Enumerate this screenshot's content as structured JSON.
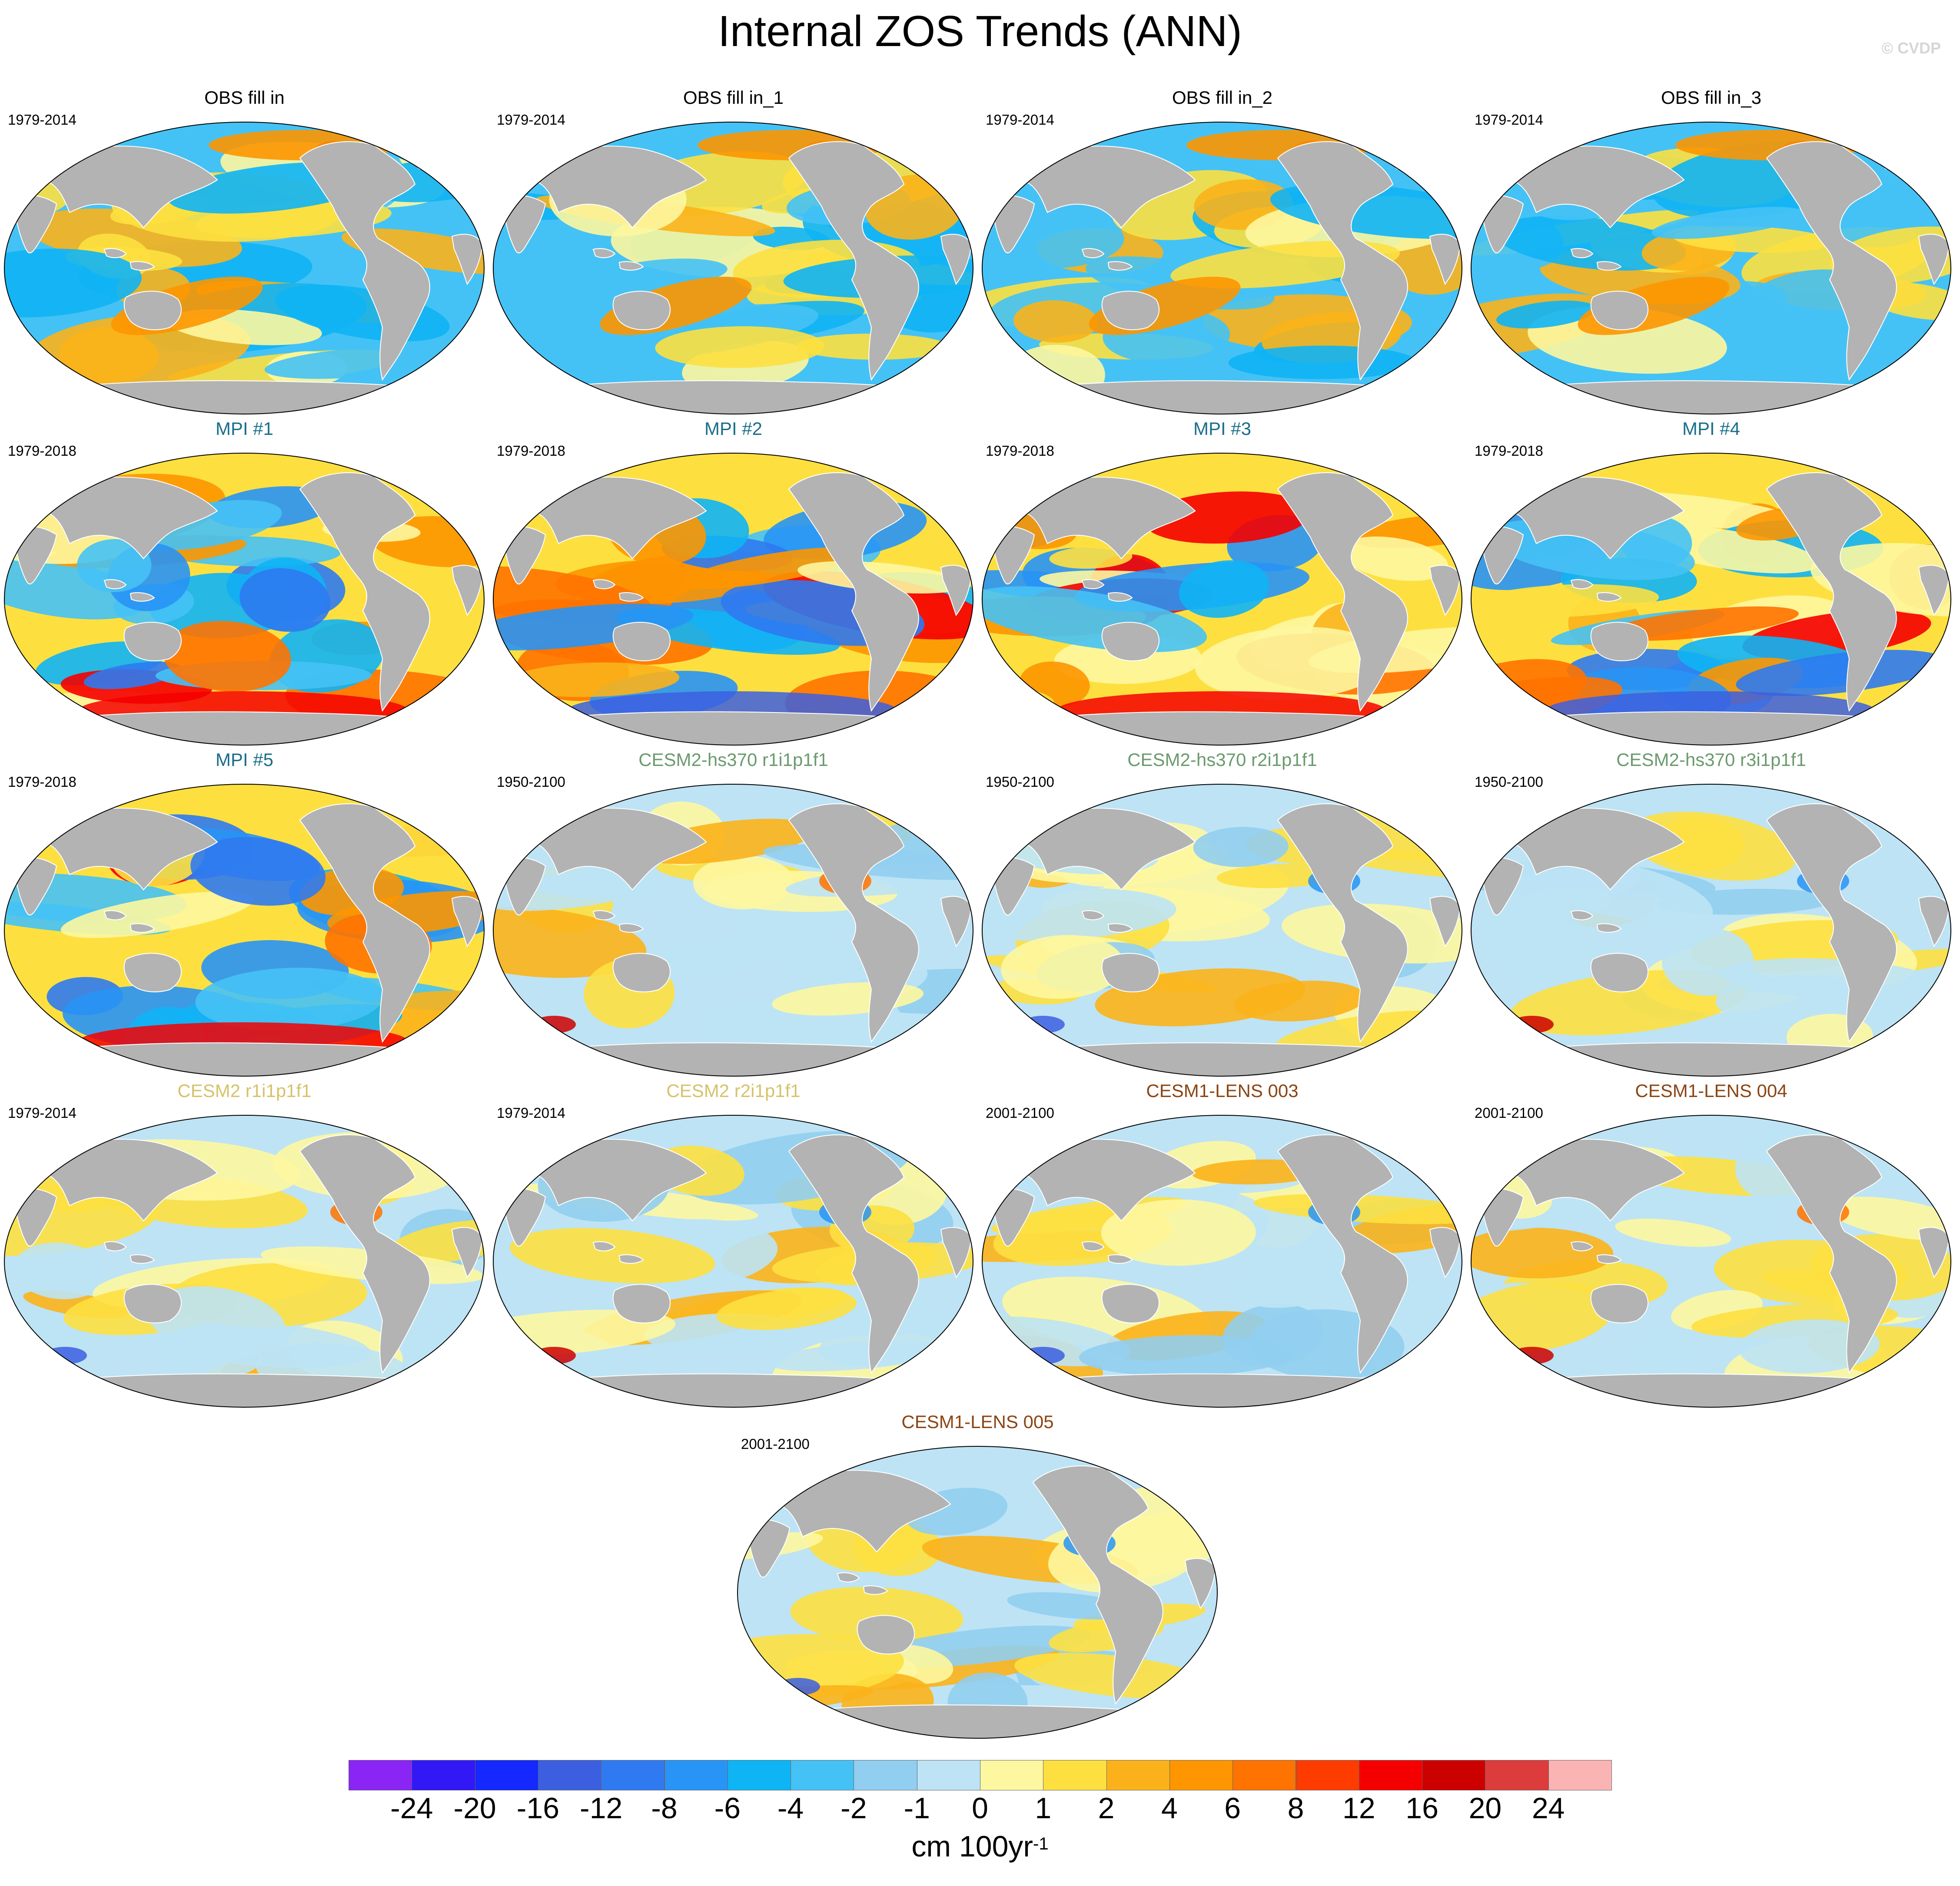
{
  "title": "Internal ZOS Trends (ANN)",
  "watermark": "© CVDP",
  "panels": [
    {
      "title": "OBS fill in",
      "period": "1979-2014",
      "title_color": "#000000"
    },
    {
      "title": "OBS fill in_1",
      "period": "1979-2014",
      "title_color": "#000000"
    },
    {
      "title": "OBS fill in_2",
      "period": "1979-2014",
      "title_color": "#000000"
    },
    {
      "title": "OBS fill in_3",
      "period": "1979-2014",
      "title_color": "#000000"
    },
    {
      "title": "MPI #1",
      "period": "1979-2018",
      "title_color": "#1a6e8a"
    },
    {
      "title": "MPI #2",
      "period": "1979-2018",
      "title_color": "#1a6e8a"
    },
    {
      "title": "MPI #3",
      "period": "1979-2018",
      "title_color": "#1a6e8a"
    },
    {
      "title": "MPI #4",
      "period": "1979-2018",
      "title_color": "#1a6e8a"
    },
    {
      "title": "MPI #5",
      "period": "1979-2018",
      "title_color": "#1a6e8a"
    },
    {
      "title": "CESM2-hs370 r1i1p1f1",
      "period": "1950-2100",
      "title_color": "#6b9a6e"
    },
    {
      "title": "CESM2-hs370 r2i1p1f1",
      "period": "1950-2100",
      "title_color": "#6b9a6e"
    },
    {
      "title": "CESM2-hs370 r3i1p1f1",
      "period": "1950-2100",
      "title_color": "#6b9a6e"
    },
    {
      "title": "CESM2 r1i1p1f1",
      "period": "1979-2014",
      "title_color": "#d6c26a"
    },
    {
      "title": "CESM2 r2i1p1f1",
      "period": "1979-2014",
      "title_color": "#d6c26a"
    },
    {
      "title": "CESM1-LENS 003",
      "period": "2001-2100",
      "title_color": "#8b4513"
    },
    {
      "title": "CESM1-LENS 004",
      "period": "2001-2100",
      "title_color": "#8b4513"
    },
    {
      "title": "CESM1-LENS 005",
      "period": "2001-2100",
      "title_color": "#8b4513"
    }
  ],
  "colorbar": {
    "colors": [
      "#8a25f5",
      "#3218f5",
      "#1428ff",
      "#3c5fe0",
      "#2f7af0",
      "#2894f5",
      "#0fb4f5",
      "#45c2f5",
      "#91cef0",
      "#bde3f5",
      "#fdf7a0",
      "#fde040",
      "#fbb21a",
      "#fd9600",
      "#ff7300",
      "#ff3c00",
      "#f50000",
      "#cd0000",
      "#dc3c3c",
      "#fab4b4"
    ],
    "labels": [
      "-24",
      "-20",
      "-16",
      "-12",
      "-8",
      "-6",
      "-4",
      "-2",
      "-1",
      "0",
      "1",
      "2",
      "4",
      "6",
      "8",
      "12",
      "16",
      "20",
      "24"
    ],
    "units": "cm 100yr",
    "units_exp": "-1"
  }
}
